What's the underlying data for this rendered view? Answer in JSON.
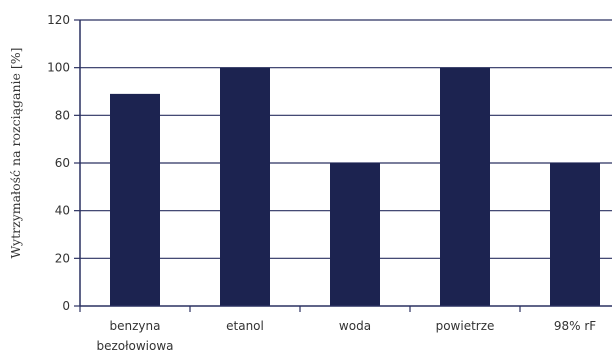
{
  "chart_data": {
    "type": "bar",
    "categories": [
      "benzyna bezołowiowa",
      "etanol",
      "woda",
      "powietrze",
      "98% rF"
    ],
    "category_label_lines": [
      [
        "benzyna",
        "bezołowiowa"
      ],
      [
        "etanol"
      ],
      [
        "woda"
      ],
      [
        "powietrze"
      ],
      [
        "98% rF"
      ]
    ],
    "values": [
      89,
      100,
      60,
      100,
      60
    ],
    "ylabel": "Wytrzymałość na rozciąganie [%]",
    "xlabel": "",
    "title": "",
    "ylim": [
      0,
      120
    ],
    "yticks": [
      0,
      20,
      40,
      60,
      80,
      100,
      120
    ],
    "grid": true,
    "colors": {
      "bar": "#1c2350",
      "grid": "#2a3060",
      "axis": "#2a3060"
    }
  }
}
